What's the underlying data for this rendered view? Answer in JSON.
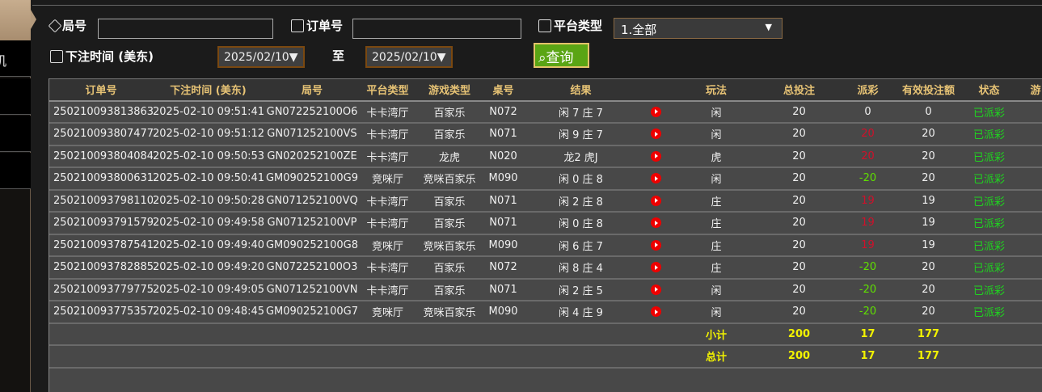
{
  "sidebar": {
    "partial_label": "机"
  },
  "filters": {
    "round_label": "局号",
    "round_value": "",
    "order_label": "订单号",
    "order_value": "",
    "platform_label": "平台类型",
    "platform_value": "1.全部",
    "time_label": "下注时间 (美东)",
    "date_from": "2025/02/10▼",
    "to_label": "至",
    "date_to": "2025/02/10▼",
    "query_label": "查询"
  },
  "table": {
    "headers": [
      "订单号",
      "下注时间 (美东)",
      "局号",
      "平台类型",
      "游戏类型",
      "桌号",
      "结果",
      "",
      "玩法",
      "总投注",
      "派彩",
      "有效投注额",
      "状态",
      "游"
    ],
    "rows": [
      [
        "250210093813863",
        "2025-02-10 09:51:41",
        "GN072252100O6",
        "卡卡湾厅",
        "百家乐",
        "N072",
        "闲 7 庄 7",
        "闲",
        "20",
        "0",
        "0",
        "已派彩"
      ],
      [
        "250210093807477",
        "2025-02-10 09:51:12",
        "GN071252100VS",
        "卡卡湾厅",
        "百家乐",
        "N071",
        "闲 9 庄 7",
        "闲",
        "20",
        "20",
        "20",
        "已派彩"
      ],
      [
        "250210093804084",
        "2025-02-10 09:50:53",
        "GN020252100ZE",
        "卡卡湾厅",
        "龙虎",
        "N020",
        "龙2 虎J",
        "虎",
        "20",
        "20",
        "20",
        "已派彩"
      ],
      [
        "250210093800631",
        "2025-02-10 09:50:41",
        "GM090252100G9",
        "竞咪厅",
        "竞咪百家乐",
        "M090",
        "闲 0 庄 8",
        "闲",
        "20",
        "-20",
        "20",
        "已派彩"
      ],
      [
        "250210093798110",
        "2025-02-10 09:50:28",
        "GN071252100VQ",
        "卡卡湾厅",
        "百家乐",
        "N071",
        "闲 2 庄 8",
        "庄",
        "20",
        "19",
        "19",
        "已派彩"
      ],
      [
        "250210093791579",
        "2025-02-10 09:49:58",
        "GN071252100VP",
        "卡卡湾厅",
        "百家乐",
        "N071",
        "闲 0 庄 8",
        "庄",
        "20",
        "19",
        "19",
        "已派彩"
      ],
      [
        "250210093787541",
        "2025-02-10 09:49:40",
        "GM090252100G8",
        "竞咪厅",
        "竞咪百家乐",
        "M090",
        "闲 6 庄 7",
        "庄",
        "20",
        "19",
        "19",
        "已派彩"
      ],
      [
        "250210093782885",
        "2025-02-10 09:49:20",
        "GN072252100O3",
        "卡卡湾厅",
        "百家乐",
        "N072",
        "闲 8 庄 4",
        "庄",
        "20",
        "-20",
        "20",
        "已派彩"
      ],
      [
        "250210093779775",
        "2025-02-10 09:49:05",
        "GN071252100VN",
        "卡卡湾厅",
        "百家乐",
        "N071",
        "闲 2 庄 5",
        "闲",
        "20",
        "-20",
        "20",
        "已派彩"
      ],
      [
        "250210093775357",
        "2025-02-10 09:48:45",
        "GM090252100G7",
        "竞咪厅",
        "竞咪百家乐",
        "M090",
        "闲 4 庄 9",
        "闲",
        "20",
        "-20",
        "20",
        "已派彩"
      ]
    ],
    "subtotal": {
      "label": "小计",
      "total_bet": "200",
      "payout": "17",
      "valid_bet": "177"
    },
    "total": {
      "label": "总计",
      "total_bet": "200",
      "payout": "17",
      "valid_bet": "177"
    }
  },
  "colors": {
    "payout_positive": "#d0102a",
    "payout_negative": "#5fe000",
    "status": "#1fd41f",
    "header_text": "#e7c375",
    "totals": "#f2f200",
    "query_button": "#5aa514"
  }
}
